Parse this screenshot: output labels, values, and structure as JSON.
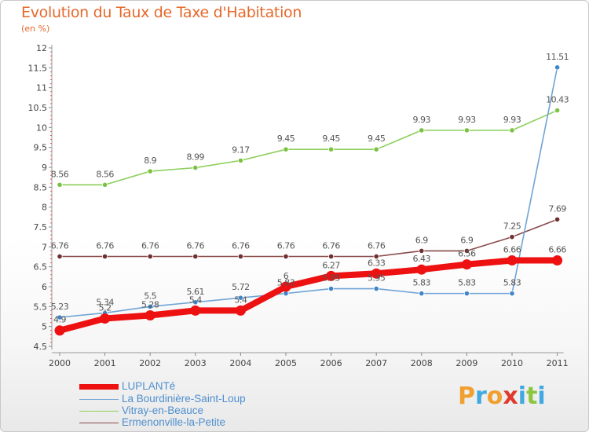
{
  "header": {
    "title": "Evolution du Taux de Taxe d'Habitation",
    "unit": "(en %)"
  },
  "logo": {
    "text": "Proxiti"
  },
  "chart_data": {
    "type": "line",
    "title": "Evolution du Taux de Taxe d'Habitation",
    "subtitle": "(en %)",
    "xlabel": "",
    "ylabel": "",
    "x": [
      "2000",
      "2001",
      "2002",
      "2003",
      "2004",
      "2005",
      "2006",
      "2007",
      "2008",
      "2009",
      "2010",
      "2011"
    ],
    "ylim": [
      4.5,
      12
    ],
    "yticks": [
      "4.5",
      "5",
      "5.5",
      "6",
      "6.5",
      "7",
      "7.5",
      "8",
      "8.5",
      "9",
      "9.5",
      "10",
      "10.5",
      "11",
      "11.5",
      "12"
    ],
    "grid": false,
    "legend_position": "bottom-left",
    "series": [
      {
        "name": "Vitray-en-Beauce",
        "color": "#8ccf5a",
        "marker": "#7cc242",
        "values": [
          8.56,
          8.56,
          8.9,
          8.99,
          9.17,
          9.45,
          9.45,
          9.45,
          9.93,
          9.93,
          9.93,
          10.43
        ],
        "labels": [
          "8.56",
          "8.56",
          "8.9",
          "8.99",
          "9.17",
          "9.45",
          "9.45",
          "9.45",
          "9.93",
          "9.93",
          "9.93",
          "10.43"
        ]
      },
      {
        "name": "Ermenonville-la-Petite",
        "color": "#8a4a4a",
        "marker": "#6e2f2f",
        "values": [
          6.76,
          6.76,
          6.76,
          6.76,
          6.76,
          6.76,
          6.76,
          6.76,
          6.9,
          6.9,
          7.25,
          7.69
        ],
        "labels": [
          "6.76",
          "6.76",
          "6.76",
          "6.76",
          "6.76",
          "6.76",
          "6.76",
          "6.76",
          "6.9",
          "6.9",
          "7.25",
          "7.69"
        ]
      },
      {
        "name": "La Bourdinière-Saint-Loup",
        "color": "#6fa4d6",
        "marker": "#3f86c9",
        "values": [
          5.23,
          5.34,
          5.5,
          5.61,
          5.72,
          5.83,
          5.95,
          5.95,
          5.83,
          5.83,
          5.83,
          11.51
        ],
        "labels": [
          "5.23",
          "5.34",
          "5.5",
          "5.61",
          "5.72",
          "5.83",
          "5.95",
          "5.95",
          "5.83",
          "5.83",
          "5.83",
          "11.51"
        ]
      },
      {
        "name": "LUPLANTé",
        "color": "#ee1111",
        "marker": "#ee1111",
        "values": [
          4.9,
          5.2,
          5.28,
          5.4,
          5.4,
          6.0,
          6.27,
          6.33,
          6.43,
          6.56,
          6.66,
          6.66
        ],
        "labels": [
          "4.9",
          "5.2",
          "5.28",
          "5.4",
          "5.4",
          "6",
          "6.27",
          "6.33",
          "6.43",
          "6.56",
          "6.66",
          "6.66"
        ]
      }
    ]
  }
}
